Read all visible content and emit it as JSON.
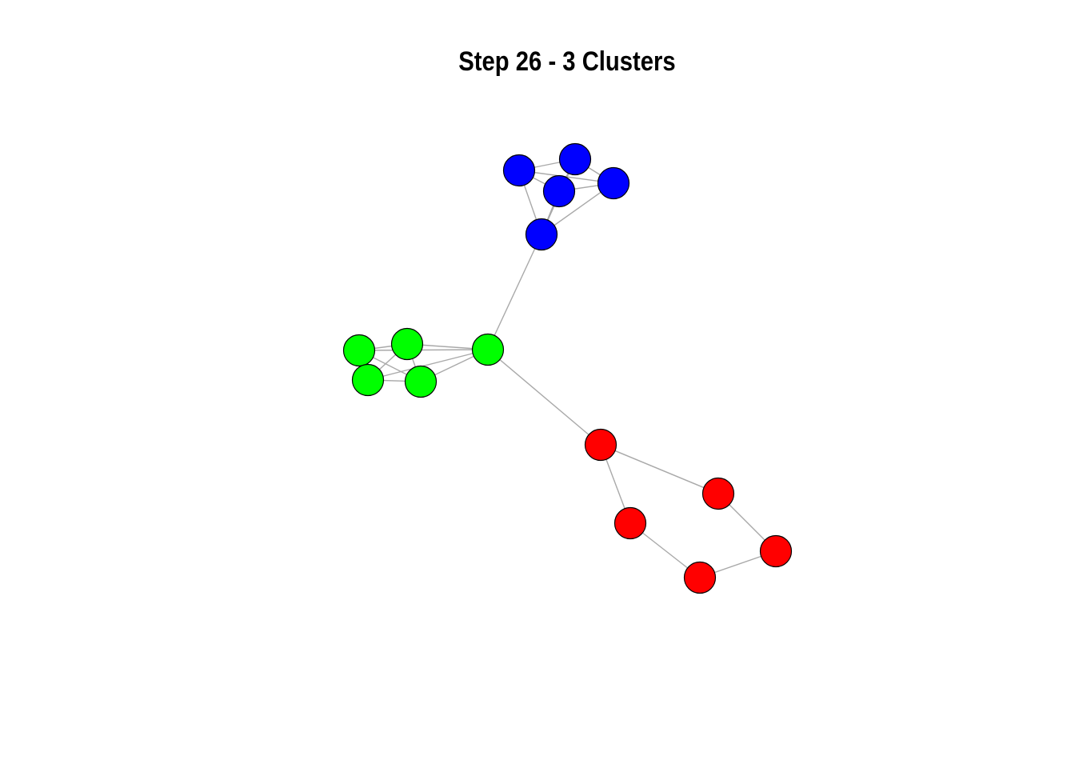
{
  "title": "Step 26 - 3 Clusters",
  "cluster_colors": {
    "blue": "#0000ff",
    "green": "#00ff00",
    "red": "#ff0000"
  },
  "edge_color": "#a9a9a9",
  "nodes": [
    {
      "id": "b1",
      "cluster": "blue"
    },
    {
      "id": "b2",
      "cluster": "blue"
    },
    {
      "id": "b3",
      "cluster": "blue"
    },
    {
      "id": "b4",
      "cluster": "blue"
    },
    {
      "id": "b5",
      "cluster": "blue"
    },
    {
      "id": "g1",
      "cluster": "green"
    },
    {
      "id": "g2",
      "cluster": "green"
    },
    {
      "id": "g3",
      "cluster": "green"
    },
    {
      "id": "g4",
      "cluster": "green"
    },
    {
      "id": "g5",
      "cluster": "green"
    },
    {
      "id": "r1",
      "cluster": "red"
    },
    {
      "id": "r2",
      "cluster": "red"
    },
    {
      "id": "r3",
      "cluster": "red"
    },
    {
      "id": "r4",
      "cluster": "red"
    },
    {
      "id": "r5",
      "cluster": "red"
    }
  ],
  "edges": [
    [
      "b1",
      "b2"
    ],
    [
      "b1",
      "b3"
    ],
    [
      "b1",
      "b4"
    ],
    [
      "b1",
      "b5"
    ],
    [
      "b2",
      "b3"
    ],
    [
      "b2",
      "b4"
    ],
    [
      "b3",
      "b4"
    ],
    [
      "b3",
      "b5"
    ],
    [
      "b4",
      "b5"
    ],
    [
      "b2",
      "b5"
    ],
    [
      "b5",
      "g5"
    ],
    [
      "g1",
      "g2"
    ],
    [
      "g1",
      "g3"
    ],
    [
      "g1",
      "g4"
    ],
    [
      "g1",
      "g5"
    ],
    [
      "g2",
      "g3"
    ],
    [
      "g2",
      "g4"
    ],
    [
      "g2",
      "g5"
    ],
    [
      "g3",
      "g4"
    ],
    [
      "g3",
      "g5"
    ],
    [
      "g4",
      "g5"
    ],
    [
      "g5",
      "r1"
    ],
    [
      "r1",
      "r2"
    ],
    [
      "r1",
      "r3"
    ],
    [
      "r2",
      "r5"
    ],
    [
      "r3",
      "r4"
    ],
    [
      "r4",
      "r5"
    ]
  ]
}
